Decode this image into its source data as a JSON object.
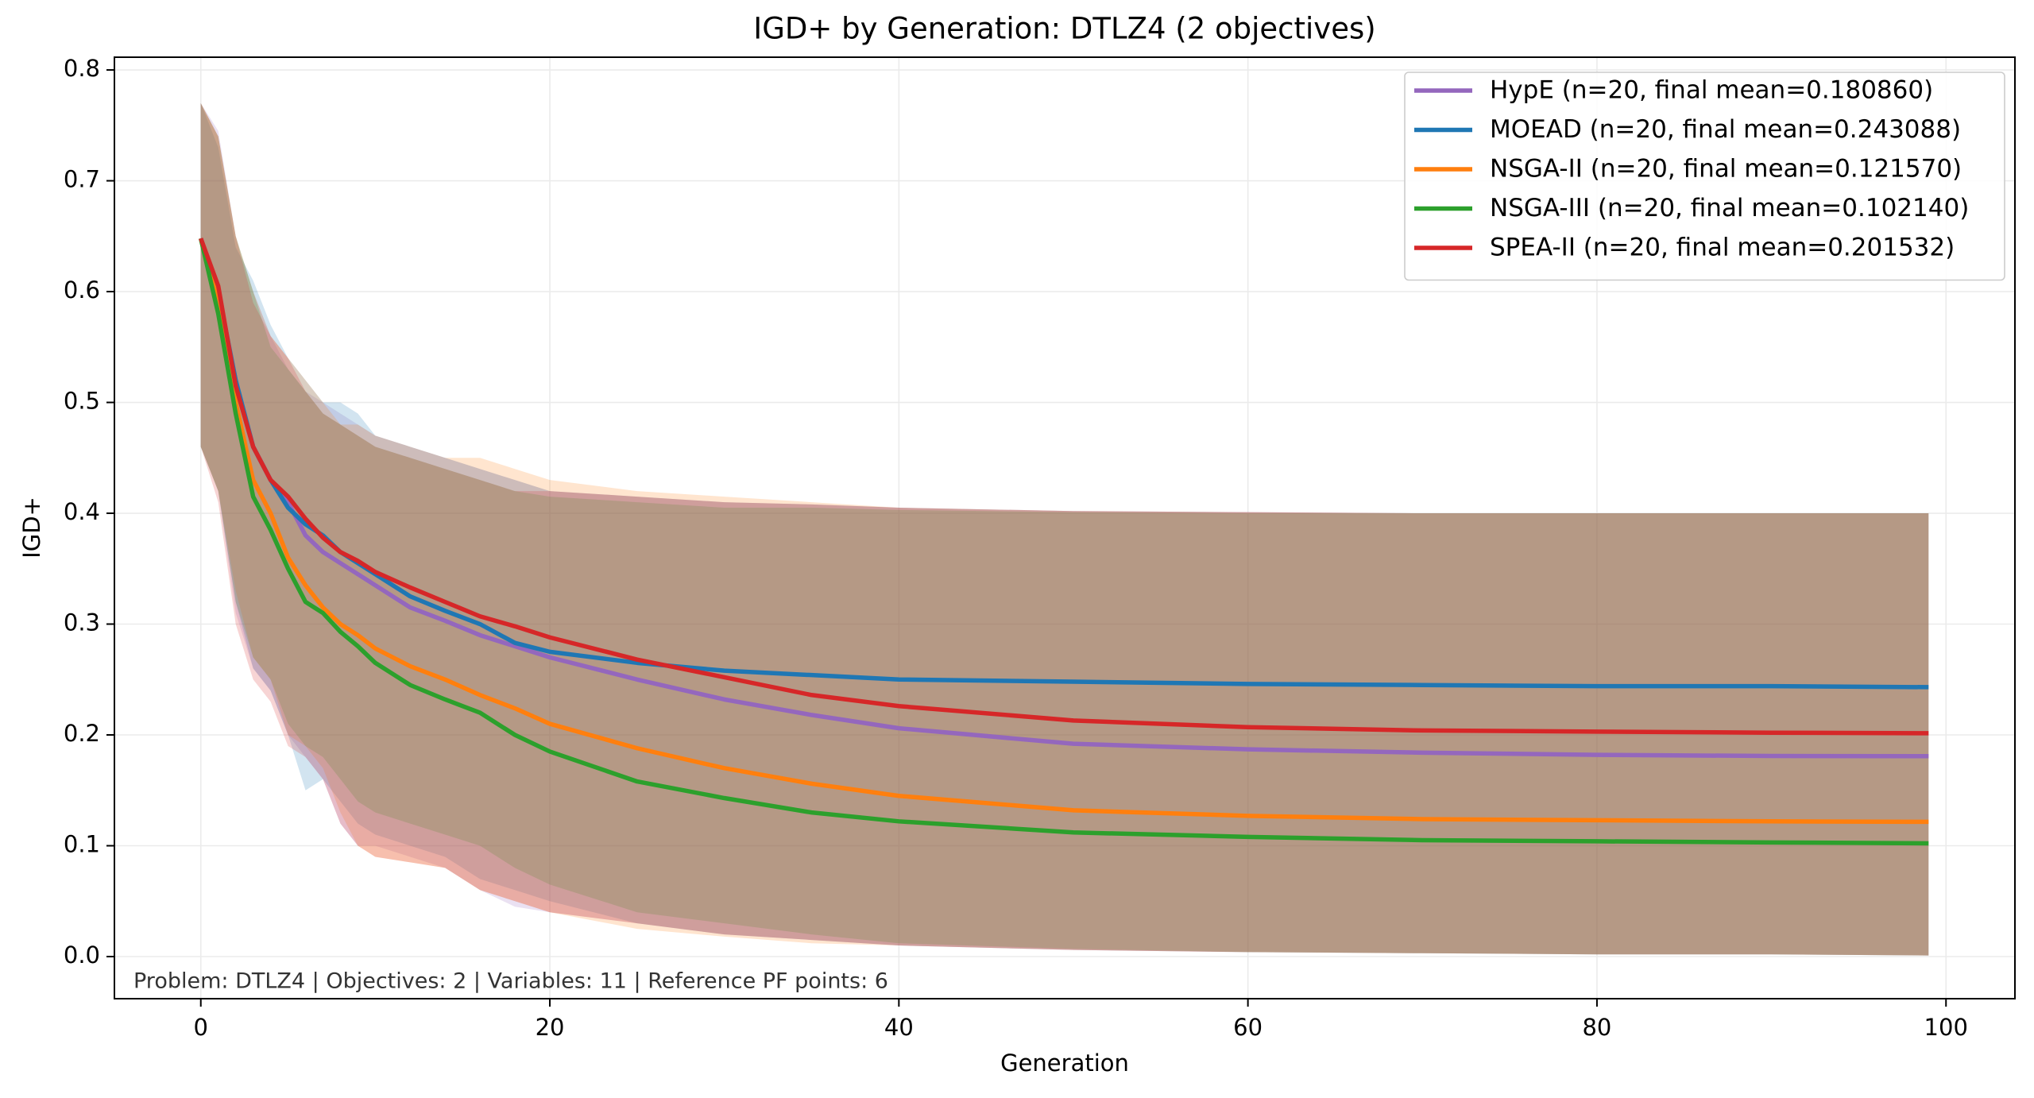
{
  "chart_data": {
    "type": "line",
    "title": "IGD+ by Generation: DTLZ4 (2 objectives)",
    "x_label": "Generation",
    "y_label": "IGD+",
    "annotation": "Problem: DTLZ4 | Objectives: 2 | Variables: 11 | Reference PF points: 6",
    "x": [
      0,
      1,
      2,
      3,
      4,
      5,
      6,
      7,
      8,
      9,
      10,
      12,
      14,
      16,
      18,
      20,
      25,
      30,
      35,
      40,
      50,
      60,
      70,
      80,
      90,
      99
    ],
    "series": [
      {
        "name": "HypE (n=20, final mean=0.180860)",
        "color": "#9467bd",
        "values": [
          0.648,
          0.6,
          0.52,
          0.46,
          0.43,
          0.41,
          0.38,
          0.365,
          0.355,
          0.345,
          0.335,
          0.315,
          0.303,
          0.29,
          0.28,
          0.27,
          0.25,
          0.232,
          0.218,
          0.206,
          0.192,
          0.187,
          0.184,
          0.182,
          0.181,
          0.18086
        ],
        "upper": [
          0.77,
          0.745,
          0.65,
          0.6,
          0.56,
          0.53,
          0.51,
          0.5,
          0.49,
          0.48,
          0.47,
          0.46,
          0.45,
          0.44,
          0.43,
          0.42,
          0.415,
          0.41,
          0.408,
          0.405,
          0.402,
          0.401,
          0.4,
          0.4,
          0.4,
          0.4
        ],
        "lower": [
          0.46,
          0.42,
          0.31,
          0.26,
          0.24,
          0.2,
          0.18,
          0.16,
          0.12,
          0.1,
          0.1,
          0.09,
          0.08,
          0.06,
          0.045,
          0.04,
          0.03,
          0.02,
          0.015,
          0.01,
          0.006,
          0.004,
          0.003,
          0.002,
          0.002,
          0.001
        ]
      },
      {
        "name": "MOEAD (n=20, final mean=0.243088)",
        "color": "#1f77b4",
        "values": [
          0.648,
          0.6,
          0.52,
          0.46,
          0.43,
          0.405,
          0.39,
          0.38,
          0.365,
          0.355,
          0.345,
          0.325,
          0.312,
          0.3,
          0.283,
          0.275,
          0.265,
          0.258,
          0.254,
          0.25,
          0.248,
          0.246,
          0.245,
          0.244,
          0.244,
          0.243088
        ],
        "upper": [
          0.77,
          0.73,
          0.64,
          0.61,
          0.57,
          0.54,
          0.52,
          0.5,
          0.5,
          0.49,
          0.47,
          0.46,
          0.45,
          0.44,
          0.43,
          0.42,
          0.415,
          0.41,
          0.408,
          0.405,
          0.402,
          0.401,
          0.4,
          0.4,
          0.4,
          0.4
        ],
        "lower": [
          0.46,
          0.42,
          0.32,
          0.26,
          0.24,
          0.2,
          0.15,
          0.16,
          0.14,
          0.12,
          0.11,
          0.1,
          0.09,
          0.07,
          0.06,
          0.05,
          0.03,
          0.02,
          0.015,
          0.01,
          0.006,
          0.004,
          0.003,
          0.002,
          0.002,
          0.001
        ]
      },
      {
        "name": "NSGA-II (n=20, final mean=0.121570)",
        "color": "#ff7f0e",
        "values": [
          0.648,
          0.59,
          0.5,
          0.43,
          0.4,
          0.36,
          0.335,
          0.315,
          0.3,
          0.29,
          0.278,
          0.262,
          0.25,
          0.236,
          0.224,
          0.21,
          0.188,
          0.17,
          0.156,
          0.145,
          0.132,
          0.127,
          0.124,
          0.123,
          0.122,
          0.12157
        ],
        "upper": [
          0.77,
          0.74,
          0.65,
          0.6,
          0.56,
          0.54,
          0.52,
          0.5,
          0.48,
          0.48,
          0.47,
          0.46,
          0.45,
          0.45,
          0.44,
          0.43,
          0.42,
          0.415,
          0.41,
          0.405,
          0.402,
          0.401,
          0.4,
          0.4,
          0.4,
          0.4
        ],
        "lower": [
          0.46,
          0.42,
          0.33,
          0.27,
          0.25,
          0.2,
          0.19,
          0.17,
          0.13,
          0.1,
          0.09,
          0.085,
          0.08,
          0.06,
          0.05,
          0.04,
          0.025,
          0.018,
          0.012,
          0.01,
          0.006,
          0.004,
          0.003,
          0.002,
          0.002,
          0.001
        ]
      },
      {
        "name": "NSGA-III (n=20, final mean=0.102140)",
        "color": "#2ca02c",
        "values": [
          0.648,
          0.58,
          0.49,
          0.415,
          0.385,
          0.35,
          0.32,
          0.31,
          0.293,
          0.28,
          0.265,
          0.245,
          0.232,
          0.22,
          0.2,
          0.185,
          0.158,
          0.143,
          0.13,
          0.122,
          0.112,
          0.108,
          0.105,
          0.104,
          0.103,
          0.10214
        ],
        "upper": [
          0.77,
          0.74,
          0.65,
          0.6,
          0.55,
          0.53,
          0.51,
          0.49,
          0.48,
          0.47,
          0.46,
          0.45,
          0.44,
          0.43,
          0.42,
          0.415,
          0.41,
          0.405,
          0.405,
          0.403,
          0.401,
          0.4,
          0.4,
          0.4,
          0.4,
          0.4
        ],
        "lower": [
          0.46,
          0.42,
          0.32,
          0.27,
          0.25,
          0.21,
          0.19,
          0.18,
          0.16,
          0.14,
          0.13,
          0.12,
          0.11,
          0.1,
          0.08,
          0.065,
          0.04,
          0.03,
          0.02,
          0.012,
          0.007,
          0.004,
          0.003,
          0.002,
          0.002,
          0.001
        ]
      },
      {
        "name": "SPEA-II (n=20, final mean=0.201532)",
        "color": "#d62728",
        "values": [
          0.648,
          0.605,
          0.515,
          0.46,
          0.43,
          0.415,
          0.395,
          0.378,
          0.365,
          0.357,
          0.347,
          0.333,
          0.32,
          0.307,
          0.298,
          0.288,
          0.268,
          0.252,
          0.236,
          0.226,
          0.213,
          0.207,
          0.204,
          0.203,
          0.202,
          0.201532
        ],
        "upper": [
          0.77,
          0.74,
          0.65,
          0.59,
          0.56,
          0.54,
          0.51,
          0.49,
          0.48,
          0.47,
          0.46,
          0.45,
          0.44,
          0.43,
          0.42,
          0.42,
          0.415,
          0.41,
          0.408,
          0.405,
          0.402,
          0.401,
          0.4,
          0.4,
          0.4,
          0.4
        ],
        "lower": [
          0.46,
          0.41,
          0.3,
          0.25,
          0.23,
          0.19,
          0.18,
          0.16,
          0.12,
          0.1,
          0.09,
          0.085,
          0.08,
          0.06,
          0.05,
          0.04,
          0.03,
          0.02,
          0.015,
          0.01,
          0.006,
          0.004,
          0.003,
          0.002,
          0.002,
          0.001
        ]
      }
    ],
    "xlim": [
      -4.95,
      103.95
    ],
    "ylim": [
      -0.038,
      0.8115
    ],
    "xticks": [
      0,
      20,
      40,
      60,
      80,
      100
    ],
    "yticks": [
      {
        "value": 0,
        "label": "0.0"
      },
      0.1,
      0.2,
      0.3,
      0.4,
      0.5,
      0.6,
      0.7,
      0.8
    ],
    "grid": true,
    "legend": "upper right"
  }
}
